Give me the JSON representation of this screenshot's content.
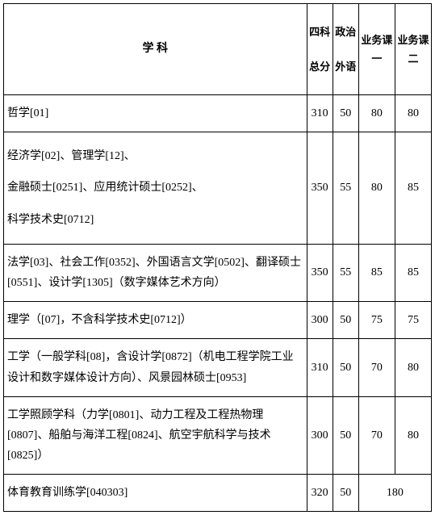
{
  "table": {
    "colors": {
      "border": "#000000",
      "background": "#ffffff",
      "text": "#000000"
    },
    "fontsize": 14,
    "header": {
      "subject": "学  科",
      "total_top": "四科",
      "total_bottom": "总分",
      "politics_top": "政治",
      "politics_bottom": "外语",
      "course1": "业务课一",
      "course2": "业务课二"
    },
    "rows": [
      {
        "subject": "哲学[01]",
        "total": "310",
        "politics": "50",
        "course1": "80",
        "course2": "80",
        "merged": false,
        "multiline": false
      },
      {
        "subject": "经济学[02]、管理学[12]、\n金融硕士[0251]、应用统计硕士[0252]、\n科学技术史[0712]",
        "total": "350",
        "politics": "55",
        "course1": "80",
        "course2": "85",
        "merged": false,
        "multiline": true
      },
      {
        "subject": "法学[03]、社会工作[0352]、外国语言文学[0502]、翻译硕士[0551]、设计学[1305]（数字媒体艺术方向）",
        "total": "350",
        "politics": "55",
        "course1": "85",
        "course2": "85",
        "merged": false,
        "multiline": false
      },
      {
        "subject": "理学（[07]，不含科学技术史[0712]）",
        "total": "300",
        "politics": "50",
        "course1": "75",
        "course2": "75",
        "merged": false,
        "multiline": false
      },
      {
        "subject": "工学（一般学科[08]，含设计学[0872]（机电工程学院工业设计和数字媒体设计方向）、风景园林硕士[0953]",
        "total": "310",
        "politics": "50",
        "course1": "70",
        "course2": "80",
        "merged": false,
        "multiline": false
      },
      {
        "subject": "工学照顾学科（力学[0801]、动力工程及工程热物理[0807]、船舶与海洋工程[0824]、航空宇航科学与技术[0825]）",
        "total": "300",
        "politics": "50",
        "course1": "70",
        "course2": "80",
        "merged": false,
        "multiline": false
      },
      {
        "subject": "体育教育训练学[040303]",
        "total": "320",
        "politics": "50",
        "merged_value": "180",
        "merged": true,
        "multiline": false
      }
    ]
  }
}
